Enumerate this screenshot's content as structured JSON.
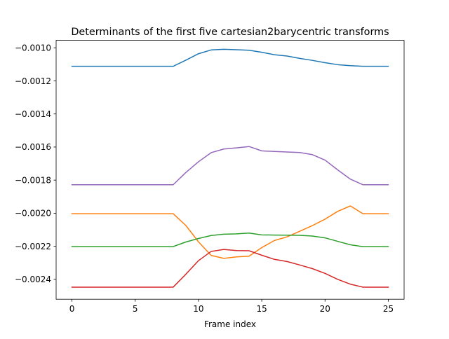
{
  "chart_data": {
    "type": "line",
    "title": "Determinants of the first five cartesian2barycentric transforms",
    "xlabel": "Frame index",
    "ylabel": "",
    "xlim": [
      -1.25,
      26.25
    ],
    "ylim": [
      -0.00252,
      -0.000955
    ],
    "grid": false,
    "legend": "none",
    "xticks": [
      0,
      5,
      10,
      15,
      20,
      25
    ],
    "xtick_labels": [
      "0",
      "5",
      "10",
      "15",
      "20",
      "25"
    ],
    "yticks": [
      -0.001,
      -0.0012,
      -0.0014,
      -0.0016,
      -0.0018,
      -0.002,
      -0.0022,
      -0.0024
    ],
    "ytick_labels": [
      "−0.0010",
      "−0.0012",
      "−0.0014",
      "−0.0016",
      "−0.0018",
      "−0.0020",
      "−0.0022",
      "−0.0024"
    ],
    "x": [
      0,
      1,
      2,
      3,
      4,
      5,
      6,
      7,
      8,
      9,
      10,
      11,
      12,
      13,
      14,
      15,
      16,
      17,
      18,
      19,
      20,
      21,
      22,
      23,
      24,
      25
    ],
    "series": [
      {
        "color": "#1f77b4",
        "values": [
          -0.001112,
          -0.001112,
          -0.001112,
          -0.001112,
          -0.001112,
          -0.001112,
          -0.001112,
          -0.001112,
          -0.001112,
          -0.001075,
          -0.001036,
          -0.001013,
          -0.001009,
          -0.001012,
          -0.001015,
          -0.001027,
          -0.001042,
          -0.00105,
          -0.001064,
          -0.001076,
          -0.00109,
          -0.001102,
          -0.001108,
          -0.001112,
          -0.001112,
          -0.001112
        ]
      },
      {
        "color": "#ff7f0e",
        "values": [
          -0.002003,
          -0.002003,
          -0.002003,
          -0.002003,
          -0.002003,
          -0.002003,
          -0.002003,
          -0.002003,
          -0.002003,
          -0.002074,
          -0.002173,
          -0.002255,
          -0.002273,
          -0.002264,
          -0.00226,
          -0.002208,
          -0.002165,
          -0.002143,
          -0.002109,
          -0.002075,
          -0.002036,
          -0.001989,
          -0.001956,
          -0.002003,
          -0.002003,
          -0.002003
        ]
      },
      {
        "color": "#2ca02c",
        "values": [
          -0.002202,
          -0.002202,
          -0.002202,
          -0.002202,
          -0.002202,
          -0.002202,
          -0.002202,
          -0.002202,
          -0.002202,
          -0.002174,
          -0.002153,
          -0.002135,
          -0.002127,
          -0.002125,
          -0.00212,
          -0.002131,
          -0.002132,
          -0.002133,
          -0.002134,
          -0.002138,
          -0.002149,
          -0.00217,
          -0.002191,
          -0.002202,
          -0.002202,
          -0.002202
        ]
      },
      {
        "color": "#d62728",
        "values": [
          -0.002447,
          -0.002447,
          -0.002447,
          -0.002447,
          -0.002447,
          -0.002447,
          -0.002447,
          -0.002447,
          -0.002447,
          -0.002369,
          -0.002287,
          -0.002231,
          -0.002219,
          -0.002226,
          -0.002227,
          -0.002254,
          -0.002279,
          -0.002292,
          -0.002313,
          -0.002335,
          -0.002364,
          -0.0024,
          -0.002429,
          -0.002447,
          -0.002447,
          -0.002447
        ]
      },
      {
        "color": "#9467bd",
        "values": [
          -0.001828,
          -0.001828,
          -0.001828,
          -0.001828,
          -0.001828,
          -0.001828,
          -0.001828,
          -0.001828,
          -0.001828,
          -0.001754,
          -0.001689,
          -0.001634,
          -0.001612,
          -0.001605,
          -0.001597,
          -0.001623,
          -0.001627,
          -0.00163,
          -0.001633,
          -0.001646,
          -0.001679,
          -0.001738,
          -0.001794,
          -0.001828,
          -0.001828,
          -0.001828
        ]
      }
    ]
  }
}
